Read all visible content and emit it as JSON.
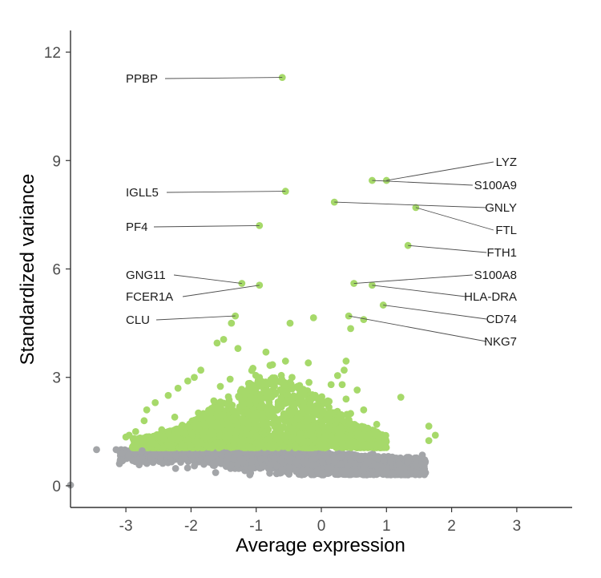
{
  "chart_data": {
    "type": "scatter",
    "title": "",
    "xlabel": "Average expression",
    "ylabel": "Standardized variance",
    "xlim": [
      -3.85,
      3.85
    ],
    "ylim": [
      -0.6,
      12.6
    ],
    "x_ticks": [
      -3,
      -2,
      -1,
      0,
      1,
      2,
      3
    ],
    "y_ticks": [
      0,
      3,
      6,
      9,
      12
    ],
    "x_tick_labels": [
      "-3",
      "-2",
      "-1",
      "0",
      "1",
      "2",
      "3"
    ],
    "y_tick_labels": [
      "0",
      "3",
      "6",
      "9",
      "12"
    ],
    "grid": false,
    "legend": "none",
    "colors": {
      "variable": "#a6d96a",
      "nonvariable": "#a3a5a8",
      "axis": "#333333"
    },
    "series": [
      {
        "key": "variable",
        "description_points": "highly variable features",
        "points": [
          [
            -0.6,
            11.3
          ],
          [
            0.78,
            8.45
          ],
          [
            1.0,
            8.45
          ],
          [
            -0.55,
            8.15
          ],
          [
            0.2,
            7.85
          ],
          [
            1.45,
            7.7
          ],
          [
            -0.95,
            7.2
          ],
          [
            1.33,
            6.65
          ],
          [
            -1.22,
            5.6
          ],
          [
            0.5,
            5.6
          ],
          [
            0.78,
            5.55
          ],
          [
            -0.95,
            5.55
          ],
          [
            0.95,
            5.0
          ],
          [
            -1.32,
            4.7
          ],
          [
            -0.12,
            4.65
          ],
          [
            0.42,
            4.7
          ],
          [
            0.65,
            4.6
          ],
          [
            -0.48,
            4.5
          ],
          [
            0.45,
            4.35
          ],
          [
            -1.38,
            4.5
          ],
          [
            -1.5,
            4.05
          ],
          [
            -1.6,
            3.95
          ],
          [
            -1.28,
            3.8
          ],
          [
            -0.85,
            3.7
          ],
          [
            -0.2,
            3.4
          ],
          [
            0.38,
            3.45
          ],
          [
            0.35,
            3.2
          ],
          [
            -0.45,
            3.0
          ],
          [
            -0.95,
            3.0
          ],
          [
            -1.85,
            3.2
          ],
          [
            -1.95,
            3.0
          ],
          [
            -2.05,
            2.9
          ],
          [
            -2.2,
            2.7
          ],
          [
            -1.55,
            2.75
          ],
          [
            0.15,
            2.8
          ],
          [
            0.32,
            2.8
          ],
          [
            0.55,
            2.65
          ],
          [
            0.38,
            2.4
          ],
          [
            1.22,
            2.45
          ],
          [
            -2.35,
            2.5
          ],
          [
            -2.55,
            2.3
          ],
          [
            -2.68,
            2.1
          ],
          [
            0.65,
            2.1
          ],
          [
            0.45,
            2.0
          ],
          [
            -2.72,
            1.8
          ],
          [
            -2.85,
            1.5
          ],
          [
            -2.95,
            1.4
          ],
          [
            -3.0,
            1.35
          ],
          [
            0.85,
            1.7
          ],
          [
            1.65,
            1.65
          ],
          [
            1.75,
            1.4
          ],
          [
            1.65,
            1.25
          ],
          [
            0.7,
            1.35
          ],
          [
            0.35,
            1.35
          ],
          [
            -2.45,
            1.55
          ],
          [
            -2.25,
            1.9
          ],
          [
            -1.65,
            2.35
          ],
          [
            -1.15,
            2.6
          ],
          [
            -0.3,
            2.55
          ],
          [
            0.1,
            2.35
          ],
          [
            -0.75,
            3.35
          ],
          [
            -1.05,
            3.25
          ],
          [
            -0.55,
            3.45
          ],
          [
            -1.4,
            2.95
          ],
          [
            0.25,
            3.05
          ],
          [
            -0.1,
            2.05
          ]
        ]
      },
      {
        "key": "nonvariable",
        "description_points": "other features",
        "points": [
          [
            -3.85,
            0.02
          ],
          [
            -3.45,
            1.0
          ],
          [
            -3.15,
            1.0
          ],
          [
            -2.75,
            0.97
          ],
          [
            1.45,
            0.75
          ],
          [
            1.55,
            0.85
          ],
          [
            1.2,
            0.6
          ],
          [
            0.85,
            0.55
          ],
          [
            0.1,
            0.35
          ],
          [
            0.35,
            0.4
          ],
          [
            0.65,
            0.5
          ],
          [
            -0.6,
            0.45
          ],
          [
            -0.3,
            0.4
          ],
          [
            0.1,
            0.5
          ],
          [
            0.4,
            0.55
          ],
          [
            -1.2,
            0.65
          ],
          [
            -0.9,
            0.55
          ],
          [
            0.3,
            0.8
          ]
        ]
      }
    ],
    "annotations": [
      {
        "label": "PPBP",
        "x": -0.6,
        "y": 11.3,
        "side": "left"
      },
      {
        "label": "IGLL5",
        "x": -0.55,
        "y": 8.15,
        "side": "left"
      },
      {
        "label": "PF4",
        "x": -0.95,
        "y": 7.2,
        "side": "left"
      },
      {
        "label": "GNG11",
        "x": -1.22,
        "y": 5.6,
        "side": "left"
      },
      {
        "label": "FCER1A",
        "x": -0.95,
        "y": 5.55,
        "side": "left"
      },
      {
        "label": "CLU",
        "x": -1.32,
        "y": 4.7,
        "side": "left"
      },
      {
        "label": "LYZ",
        "x": 1.0,
        "y": 8.45,
        "side": "right"
      },
      {
        "label": "S100A9",
        "x": 0.78,
        "y": 8.45,
        "side": "right"
      },
      {
        "label": "GNLY",
        "x": 0.2,
        "y": 7.85,
        "side": "right"
      },
      {
        "label": "FTL",
        "x": 1.45,
        "y": 7.7,
        "side": "right"
      },
      {
        "label": "FTH1",
        "x": 1.33,
        "y": 6.65,
        "side": "right"
      },
      {
        "label": "S100A8",
        "x": 0.5,
        "y": 5.6,
        "side": "right"
      },
      {
        "label": "HLA-DRA",
        "x": 0.78,
        "y": 5.55,
        "side": "right"
      },
      {
        "label": "CD74",
        "x": 0.95,
        "y": 5.0,
        "side": "right"
      },
      {
        "label": "NKG7",
        "x": 0.42,
        "y": 4.7,
        "side": "right"
      }
    ]
  }
}
